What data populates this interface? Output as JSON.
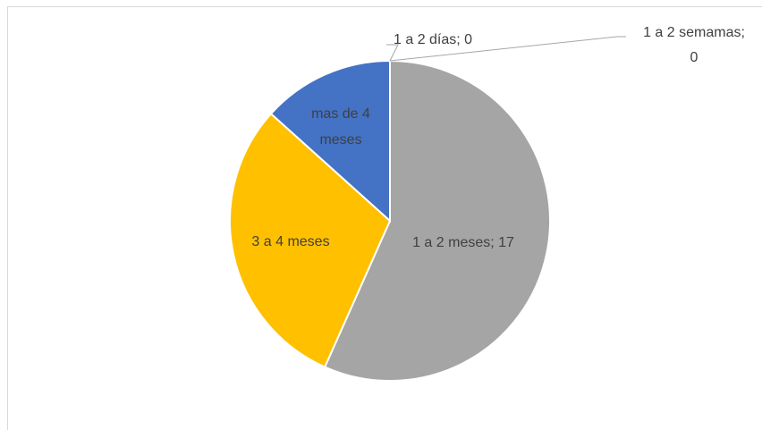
{
  "chart_data": {
    "type": "pie",
    "categories": [
      "1 a 2 días",
      "1 a 2 semamas",
      "1 a 2 meses",
      "3 a 4 meses",
      "mas de 4 meses"
    ],
    "values": [
      0,
      0,
      17,
      9,
      4
    ],
    "colors": [
      "#5b9bd5",
      "#ed7d31",
      "#a5a5a5",
      "#ffc000",
      "#4472c4"
    ],
    "labels": {
      "days": "1 a 2 días; 0",
      "weeks_line1": "1 a 2 semamas;",
      "weeks_line2": "0",
      "months12": "1 a 2 meses; 17",
      "months34": "3 a 4 meses",
      "more_line1": "mas de 4",
      "more_line2": "meses"
    },
    "legend": "none"
  }
}
